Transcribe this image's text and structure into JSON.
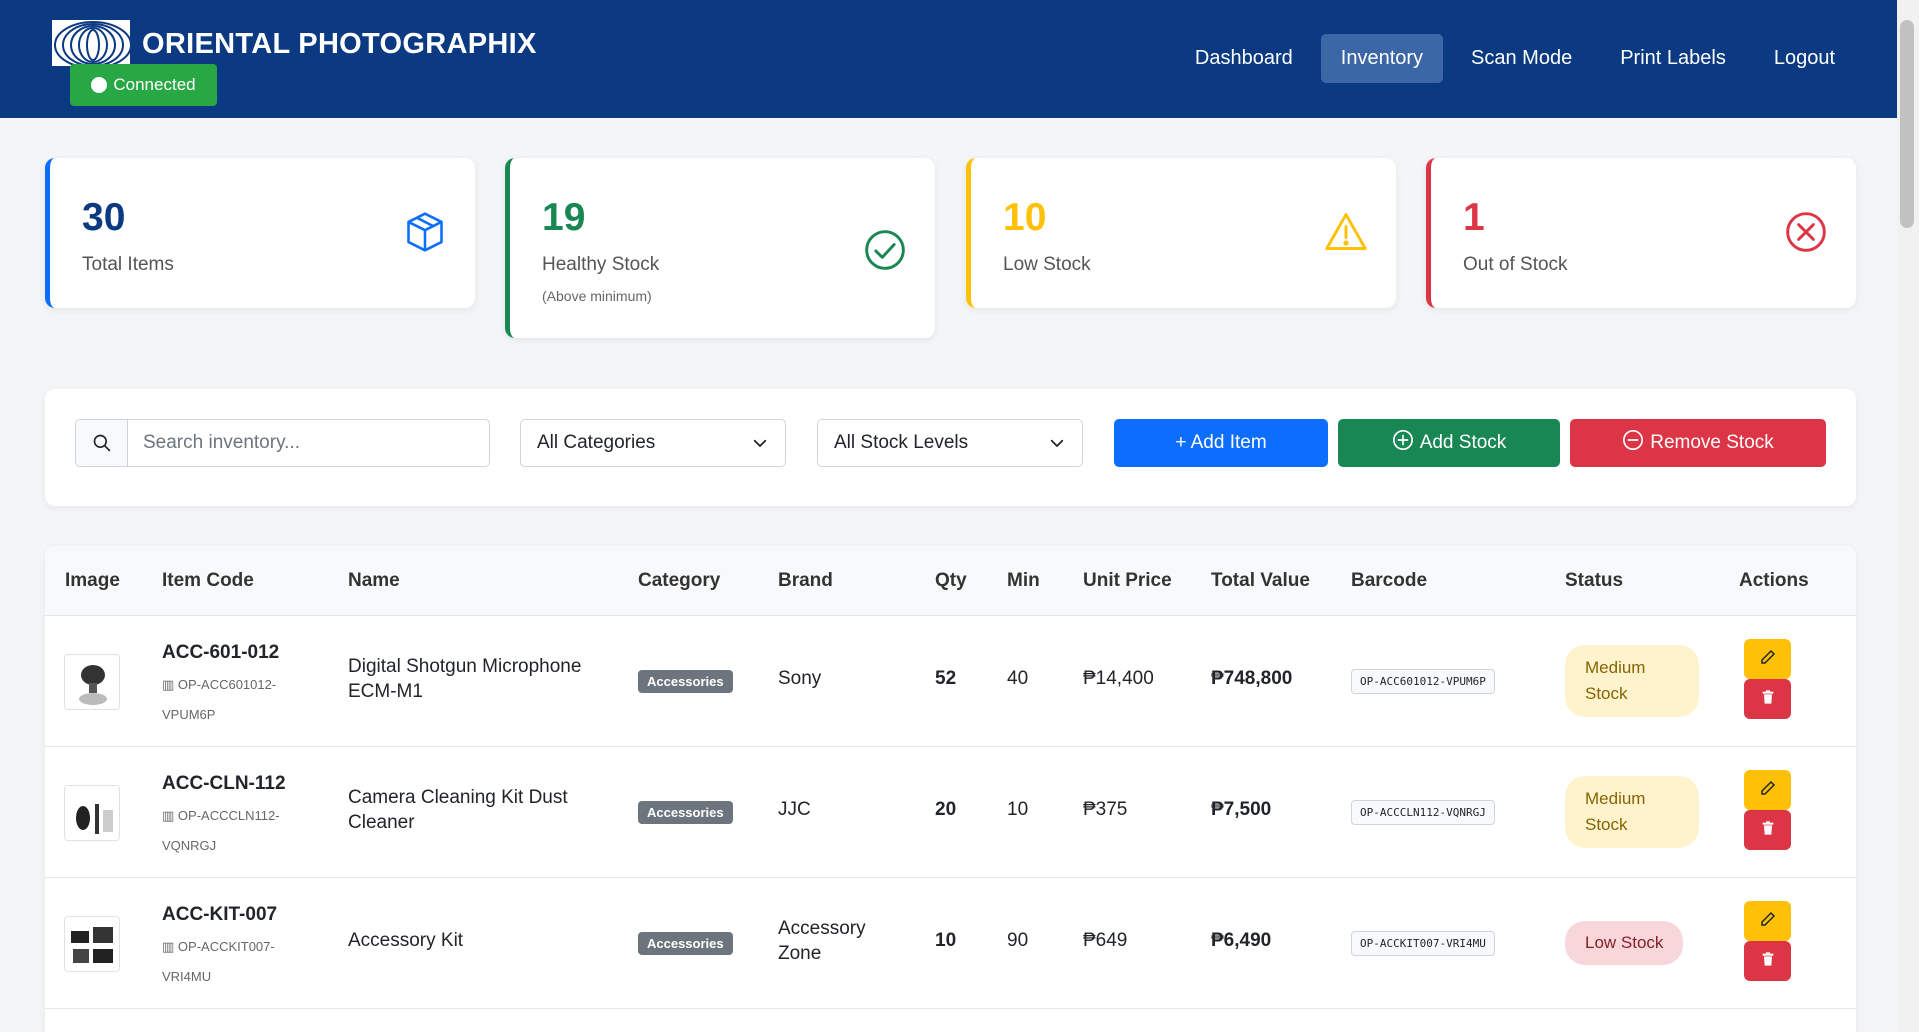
{
  "header": {
    "brand": "ORIENTAL PHOTOGRAPHIX",
    "connection_status": "Connected",
    "nav": [
      {
        "label": "Dashboard",
        "active": false
      },
      {
        "label": "Inventory",
        "active": true
      },
      {
        "label": "Scan Mode",
        "active": false
      },
      {
        "label": "Print Labels",
        "active": false
      },
      {
        "label": "Logout",
        "active": false
      }
    ]
  },
  "stats": [
    {
      "value": "30",
      "label": "Total Items",
      "sub": "",
      "color": "#0d6efd",
      "icon": "box-icon"
    },
    {
      "value": "19",
      "label": "Healthy Stock",
      "sub": "(Above minimum)",
      "color": "#198754",
      "icon": "check-circle-icon"
    },
    {
      "value": "10",
      "label": "Low Stock",
      "sub": "",
      "color": "#ffc107",
      "icon": "warning-icon"
    },
    {
      "value": "1",
      "label": "Out of Stock",
      "sub": "",
      "color": "#dc3545",
      "icon": "x-circle-icon"
    }
  ],
  "filters": {
    "search_placeholder": "Search inventory...",
    "category_selected": "All Categories",
    "stock_level_selected": "All Stock Levels",
    "add_item_label": "+ Add Item",
    "add_stock_label": "Add Stock",
    "remove_stock_label": "Remove Stock"
  },
  "table": {
    "headers": [
      "Image",
      "Item Code",
      "Name",
      "Category",
      "Brand",
      "Qty",
      "Min",
      "Unit Price",
      "Total Value",
      "Barcode",
      "Status",
      "Actions"
    ],
    "rows": [
      {
        "code": "ACC-601-012",
        "subcode": "OP-ACC601012-VPUM6P",
        "name": "Digital Shotgun Microphone ECM-M1",
        "category": "Accessories",
        "brand": "Sony",
        "qty": "52",
        "min": "40",
        "unit_price": "₱14,400",
        "total_value": "₱748,800",
        "barcode": "OP-ACC601012-VPUM6P",
        "status": "Medium Stock"
      },
      {
        "code": "ACC-CLN-112",
        "subcode": "OP-ACCCLN112-VQNRGJ",
        "name": "Camera Cleaning Kit Dust Cleaner",
        "category": "Accessories",
        "brand": "JJC",
        "qty": "20",
        "min": "10",
        "unit_price": "₱375",
        "total_value": "₱7,500",
        "barcode": "OP-ACCCLN112-VQNRGJ",
        "status": "Medium Stock"
      },
      {
        "code": "ACC-KIT-007",
        "subcode": "OP-ACCKIT007-VRI4MU",
        "name": "Accessory Kit",
        "category": "Accessories",
        "brand": "Accessory Zone",
        "qty": "10",
        "min": "90",
        "unit_price": "₱649",
        "total_value": "₱6,490",
        "barcode": "OP-ACCKIT007-VRI4MU",
        "status": "Low Stock"
      }
    ]
  }
}
